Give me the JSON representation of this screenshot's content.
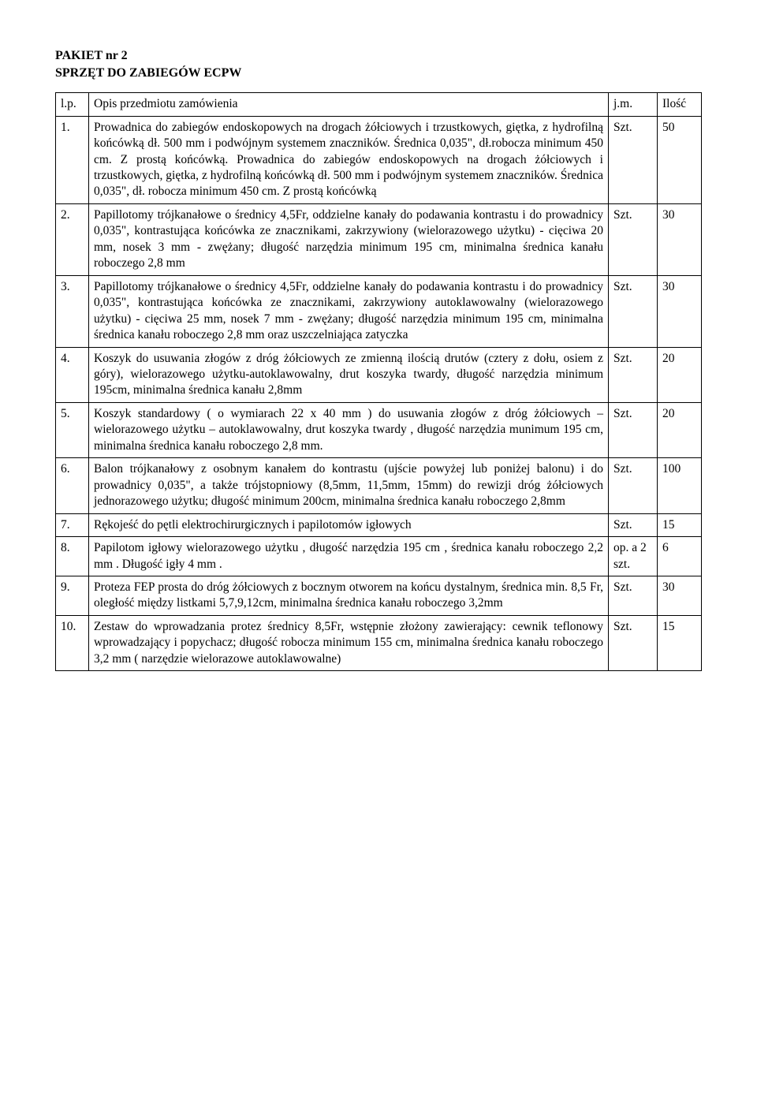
{
  "header": {
    "line1": "PAKIET nr 2",
    "line2": "SPRZĘT DO ZABIEGÓW ECPW"
  },
  "table": {
    "head": {
      "lp": "l.p.",
      "desc": "Opis przedmiotu zamówienia",
      "unit": "j.m.",
      "qty": "Ilość"
    },
    "rows": [
      {
        "lp": "1.",
        "desc": "Prowadnica do zabiegów endoskopowych na drogach żółciowych i trzustkowych, giętka, z hydrofilną końcówką dł. 500 mm i podwójnym systemem znaczników. Średnica 0,035\", dł.robocza minimum 450 cm. Z prostą końcówką. Prowadnica do zabiegów endoskopowych na drogach żółciowych  i trzustkowych, giętka, z hydrofilną końcówką dł. 500 mm i podwójnym systemem znaczników. Średnica 0,035\", dł. robocza minimum 450 cm. Z prostą końcówką",
        "unit": "Szt.",
        "qty": "50"
      },
      {
        "lp": "2.",
        "desc": "Papillotomy trójkanałowe o średnicy 4,5Fr, oddzielne kanały do podawania kontrastu i do prowadnicy 0,035\", kontrastująca końcówka ze znacznikami, zakrzywiony (wielorazowego użytku) - cięciwa 20 mm, nosek 3 mm - zwężany; długość narzędzia minimum 195 cm, minimalna średnica kanału roboczego 2,8 mm",
        "unit": "Szt.",
        "qty": "30"
      },
      {
        "lp": "3.",
        "desc": "Papillotomy trójkanałowe o średnicy 4,5Fr, oddzielne kanały do podawania kontrastu i do prowadnicy 0,035\", kontrastująca końcówka ze znacznikami, zakrzywiony autoklawowalny (wielorazowego użytku) - cięciwa 25 mm, nosek 7 mm - zwężany; długość narzędzia minimum 195 cm, minimalna średnica kanału roboczego 2,8 mm oraz uszczelniająca zatyczka",
        "unit": "Szt.",
        "qty": "30"
      },
      {
        "lp": "4.",
        "desc": "Koszyk do usuwania złogów z dróg żółciowych ze zmienną ilością drutów (cztery z dołu, osiem z góry), wielorazowego użytku-autoklawowalny, drut koszyka twardy, długość narzędzia minimum 195cm, minimalna średnica kanału 2,8mm",
        "unit": "Szt.",
        "qty": "20"
      },
      {
        "lp": "5.",
        "desc": "Koszyk standardowy ( o wymiarach 22 x 40 mm ) do usuwania złogów z dróg żółciowych – wielorazowego użytku – autoklawowalny, drut koszyka twardy , długość narzędzia munimum 195 cm, minimalna średnica kanału roboczego 2,8 mm.",
        "unit": "Szt.",
        "qty": "20"
      },
      {
        "lp": "6.",
        "desc": "Balon trójkanałowy z osobnym kanałem do kontrastu (ujście powyżej lub poniżej balonu) i do prowadnicy 0,035\", a także trójstopniowy (8,5mm, 11,5mm, 15mm) do rewizji dróg żółciowych jednorazowego użytku; długość minimum 200cm, minimalna średnica kanału roboczego 2,8mm",
        "unit": "Szt.",
        "qty": "100"
      },
      {
        "lp": "7.",
        "desc": "Rękojeść do pętli elektrochirurgicznych i papilotomów igłowych",
        "unit": "Szt.",
        "qty": "15"
      },
      {
        "lp": "8.",
        "desc": "Papilotom igłowy wielorazowego użytku , długość narzędzia 195 cm , średnica kanału roboczego 2,2 mm . Długość igły 4 mm .",
        "unit": "op. a 2 szt.",
        "qty": "6"
      },
      {
        "lp": "9.",
        "desc": "Proteza FEP prosta do dróg żółciowych z bocznym otworem na końcu dystalnym, średnica min. 8,5 Fr, oległość między listkami 5,7,9,12cm, minimalna średnica kanału roboczego 3,2mm",
        "unit": "Szt.",
        "qty": "30"
      },
      {
        "lp": "10.",
        "desc": "Zestaw do wprowadzania protez średnicy 8,5Fr, wstępnie złożony zawierający:  cewnik teflonowy wprowadzający i popychacz; długość robocza minimum 155 cm, minimalna średnica kanału roboczego 3,2 mm ( narzędzie wielorazowe autoklawowalne)",
        "unit": "Szt.",
        "qty": "15"
      }
    ]
  }
}
